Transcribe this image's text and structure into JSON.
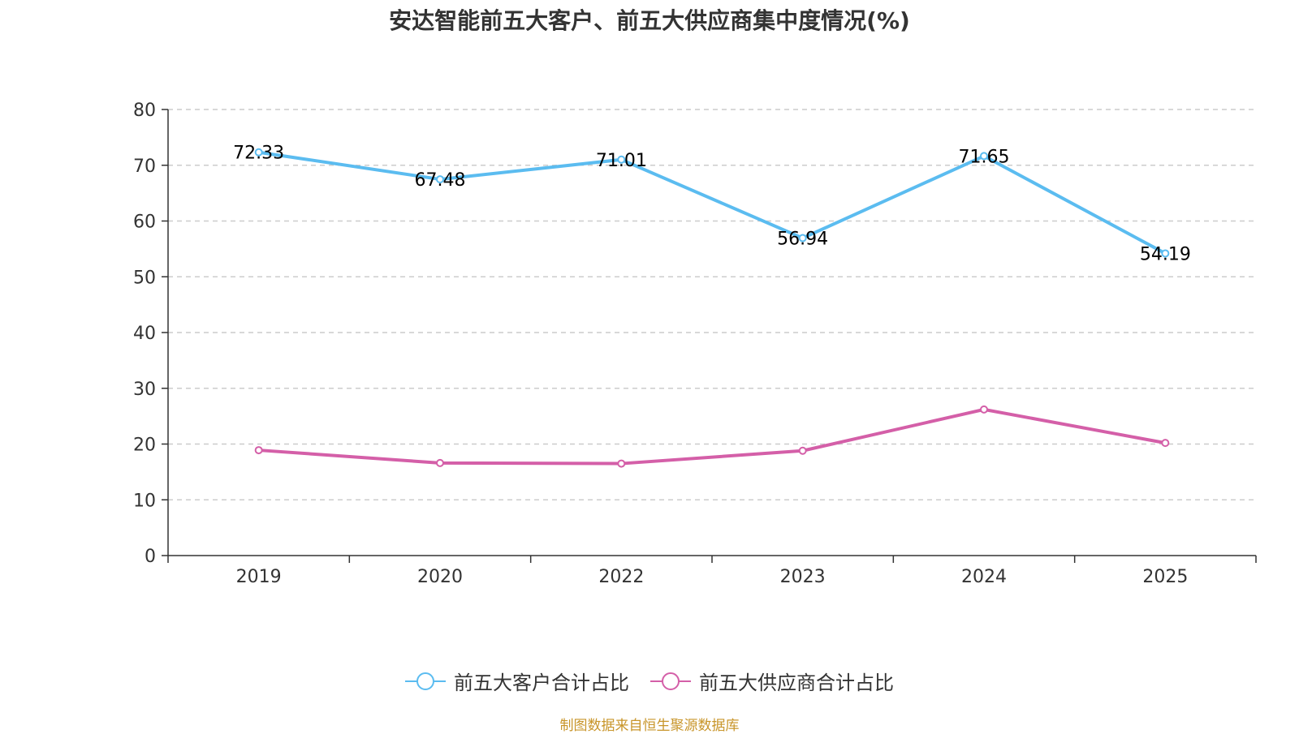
{
  "chart_data": {
    "type": "line",
    "title": "安达智能前五大客户、前五大供应商集中度情况(%)",
    "categories": [
      "2019",
      "2020",
      "2022",
      "2023",
      "2024",
      "2025"
    ],
    "ylim": [
      0,
      80
    ],
    "yticks": [
      "0",
      "10",
      "20",
      "30",
      "40",
      "50",
      "60",
      "70",
      "80"
    ],
    "grid": true,
    "legend_position": "bottom",
    "series": [
      {
        "name": "前五大客户合计占比",
        "color": "#5bbcf0",
        "values": [
          72.33,
          67.48,
          71.01,
          56.94,
          71.65,
          54.19
        ],
        "labels": [
          "72.33",
          "67.48",
          "71.01",
          "56.94",
          "71.65",
          "54.19"
        ]
      },
      {
        "name": "前五大供应商合计占比",
        "color": "#d45fa8",
        "values": [
          18.9,
          16.6,
          16.5,
          18.8,
          26.2,
          20.2
        ]
      }
    ]
  },
  "source": "制图数据来自恒生聚源数据库"
}
